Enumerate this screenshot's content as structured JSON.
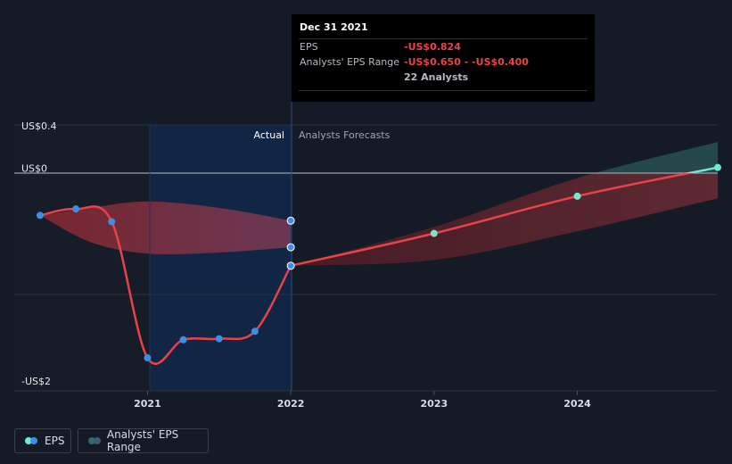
{
  "chart_data": {
    "type": "line",
    "x_unit": "year",
    "y_unit": "US$",
    "xlim": [
      2020.07,
      2024.98
    ],
    "ylim": [
      -2.0,
      0.5
    ],
    "y_ticks": [
      {
        "value": 0.4,
        "label": "US$0.4"
      },
      {
        "value": 0.0,
        "label": "US$0"
      },
      {
        "value": -2.0,
        "label": "-US$2"
      }
    ],
    "x_ticks": [
      {
        "value": 2021,
        "label": "2021"
      },
      {
        "value": 2022,
        "label": "2022"
      },
      {
        "value": 2023,
        "label": "2023"
      },
      {
        "value": 2024,
        "label": "2024"
      }
    ],
    "zone_labels": {
      "actual": "Actual",
      "forecast": "Analysts Forecasts"
    },
    "divider_x": 2022,
    "actual_region_start": 2021,
    "series": [
      {
        "name": "EPS",
        "kind": "actual",
        "color": "#e8424a",
        "marker_color": "#3d8fe6",
        "points": [
          [
            2020.25,
            -0.35
          ],
          [
            2020.5,
            -0.29
          ],
          [
            2020.75,
            -0.41
          ],
          [
            2021.0,
            -1.69
          ],
          [
            2021.25,
            -1.52
          ],
          [
            2021.5,
            -1.51
          ],
          [
            2021.75,
            -1.44
          ],
          [
            2022.0,
            -0.824
          ]
        ]
      },
      {
        "name": "EPS",
        "kind": "forecast",
        "color_negative": "#e8424a",
        "color_positive": "#6fe8d5",
        "points": [
          [
            2022.0,
            -0.824
          ],
          [
            2023.0,
            -0.52
          ],
          [
            2024.0,
            -0.17
          ],
          [
            2024.98,
            0.1
          ]
        ]
      }
    ],
    "actual_range": {
      "name": "Analysts' EPS Range",
      "upper": [
        [
          2020.25,
          -0.35
        ],
        [
          2020.6,
          -0.28
        ],
        [
          2021.0,
          -0.22
        ],
        [
          2021.5,
          -0.28
        ],
        [
          2022.0,
          -0.4
        ]
      ],
      "lower": [
        [
          2020.25,
          -0.35
        ],
        [
          2020.6,
          -0.6
        ],
        [
          2021.0,
          -0.71
        ],
        [
          2021.5,
          -0.7
        ],
        [
          2022.0,
          -0.65
        ]
      ],
      "markers": [
        -0.4,
        -0.65
      ]
    },
    "forecast_range": {
      "name": "Analysts' EPS Range",
      "upper": [
        [
          2022.0,
          -0.824
        ],
        [
          2023.0,
          -0.46
        ],
        [
          2024.0,
          0.0
        ],
        [
          2024.98,
          0.34
        ]
      ],
      "lower": [
        [
          2022.0,
          -0.824
        ],
        [
          2023.0,
          -0.77
        ],
        [
          2024.0,
          -0.5
        ],
        [
          2024.98,
          -0.19
        ]
      ]
    }
  },
  "tooltip": {
    "date": "Dec 31 2021",
    "rows": [
      {
        "label": "EPS",
        "value": "-US$0.824"
      },
      {
        "label": "Analysts' EPS Range",
        "value": "-US$0.650 - -US$0.400"
      }
    ],
    "analysts": "22 Analysts"
  },
  "legend": {
    "eps_label": "EPS",
    "range_label": "Analysts' EPS Range"
  },
  "colors": {
    "background": "#151b26",
    "eps_line": "#e8424a",
    "eps_marker": "#3d8fe6",
    "forecast_positive": "#6fe8d5",
    "range_fill": "#7a2a35",
    "actual_highlight": "#112848"
  }
}
